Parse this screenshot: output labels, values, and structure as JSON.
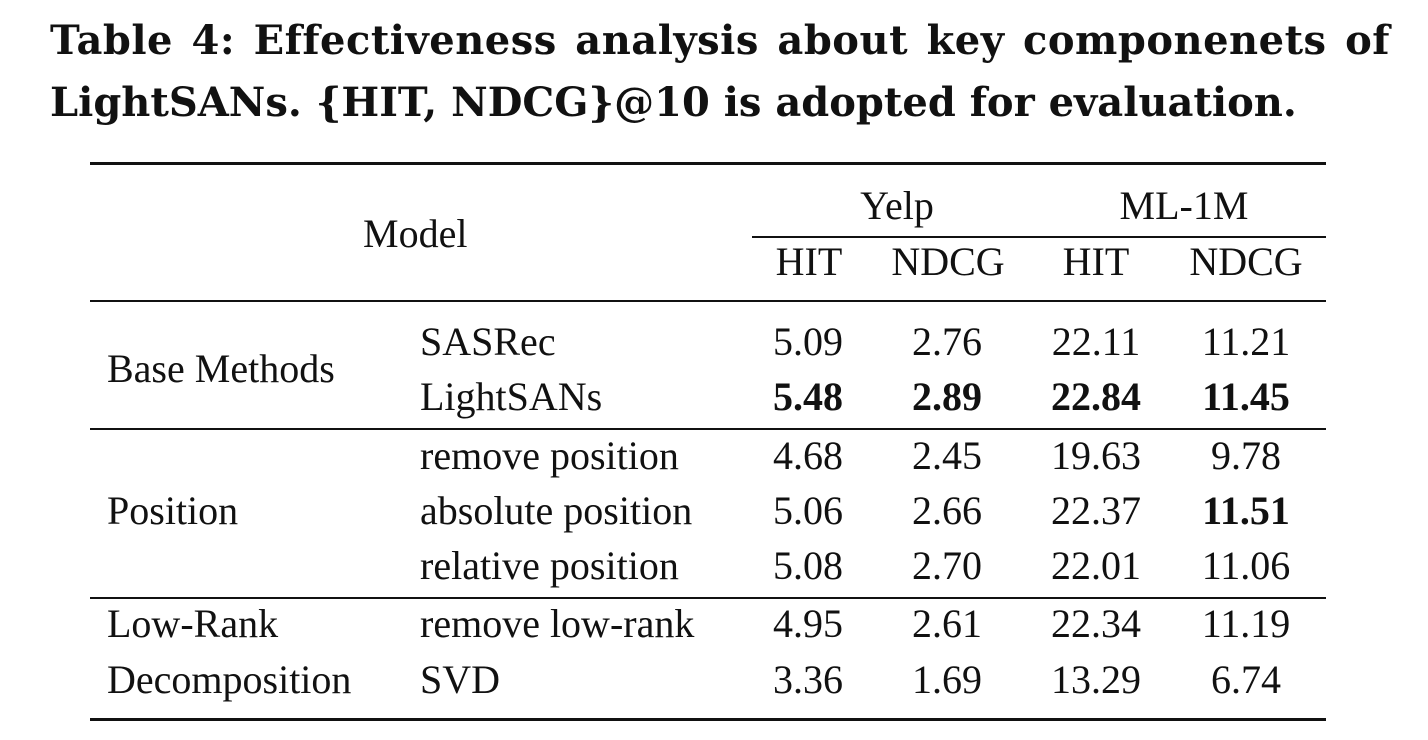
{
  "caption": {
    "line1": "Table 4: Effectiveness analysis about key componenets of",
    "line2": "LightSANs. {HIT, NDCG}@10 is adopted for evaluation."
  },
  "table": {
    "model_header": "Model",
    "datasets": [
      "Yelp",
      "ML-1M"
    ],
    "metrics": [
      "HIT",
      "NDCG",
      "HIT",
      "NDCG"
    ],
    "groups": [
      {
        "label_lines": [
          "Base Methods"
        ]
      },
      {
        "label_lines": [
          "Position"
        ]
      },
      {
        "label_lines": [
          "Low-Rank",
          "Decomposition"
        ]
      }
    ],
    "rows": [
      {
        "variant": "SASRec",
        "values": [
          "5.09",
          "2.76",
          "22.11",
          "11.21"
        ],
        "bold": [
          false,
          false,
          false,
          false
        ]
      },
      {
        "variant": "LightSANs",
        "values": [
          "5.48",
          "2.89",
          "22.84",
          "11.45"
        ],
        "bold": [
          true,
          true,
          true,
          true
        ]
      },
      {
        "variant": "remove position",
        "values": [
          "4.68",
          "2.45",
          "19.63",
          "9.78"
        ],
        "bold": [
          false,
          false,
          false,
          false
        ]
      },
      {
        "variant": "absolute position",
        "values": [
          "5.06",
          "2.66",
          "22.37",
          "11.51"
        ],
        "bold": [
          false,
          false,
          false,
          true
        ]
      },
      {
        "variant": "relative position",
        "values": [
          "5.08",
          "2.70",
          "22.01",
          "11.06"
        ],
        "bold": [
          false,
          false,
          false,
          false
        ]
      },
      {
        "variant": "remove low-rank",
        "values": [
          "4.95",
          "2.61",
          "22.34",
          "11.19"
        ],
        "bold": [
          false,
          false,
          false,
          false
        ]
      },
      {
        "variant": "SVD",
        "values": [
          "3.36",
          "1.69",
          "13.29",
          "6.74"
        ],
        "bold": [
          false,
          false,
          false,
          false
        ]
      }
    ]
  }
}
